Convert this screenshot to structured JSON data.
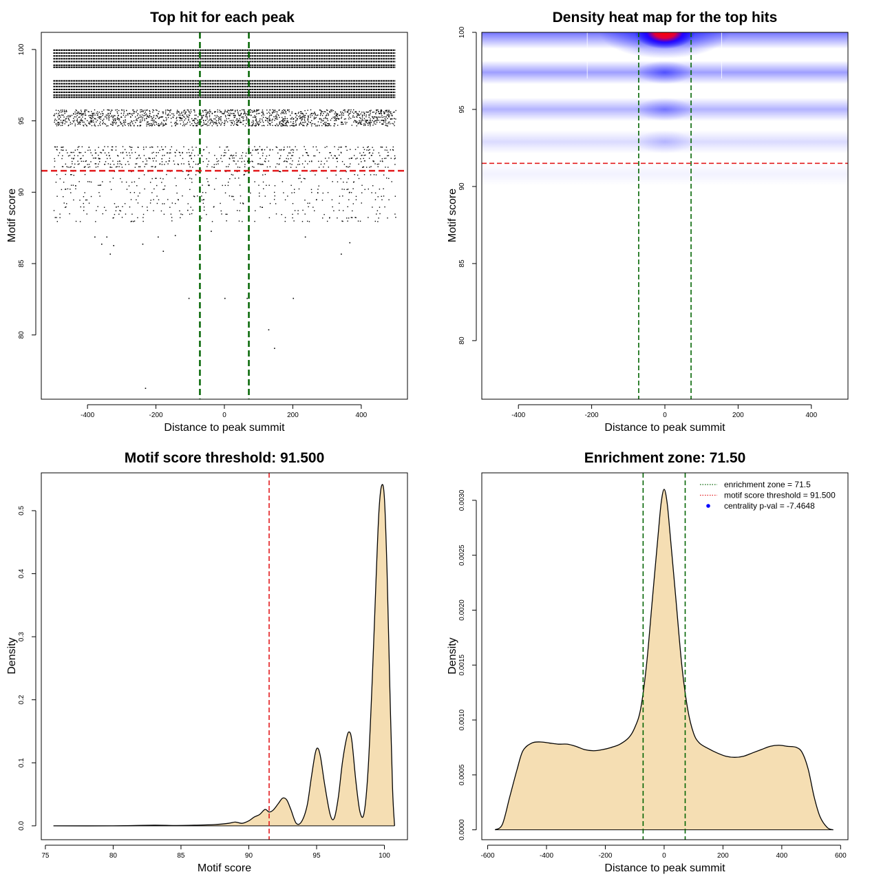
{
  "chart_data": [
    {
      "type": "scatter",
      "title": "Top hit for each peak",
      "xlabel": "Distance to peak summit",
      "ylabel": "Motif score",
      "xlim": [
        -535,
        535
      ],
      "ylim": [
        75.5,
        101.2
      ],
      "x_ticks": [
        -400,
        -200,
        0,
        200,
        400
      ],
      "y_ticks": [
        80,
        85,
        90,
        95,
        100
      ],
      "x_tick_labels": [
        "-400",
        "-200",
        "0",
        "200",
        "400"
      ],
      "y_tick_labels": [
        "80",
        "85",
        "90",
        "95",
        "100"
      ],
      "vlines": [
        -71.5,
        71.5
      ],
      "hline": 91.5,
      "line_color_v": "#006400",
      "line_color_h": "#e31a1c",
      "solid_bands": [
        99.95,
        99.75,
        99.55,
        99.35,
        99.15,
        98.9,
        98.75,
        97.8,
        97.6,
        97.4,
        97.2,
        97.0,
        96.8,
        96.65
      ],
      "dense_band_range": [
        94.7,
        95.8
      ],
      "medium_band_range": [
        91.8,
        93.4
      ],
      "sparse_band_range": [
        88.0,
        91.5
      ],
      "outliers": [
        {
          "x": -380,
          "y": 86.9
        },
        {
          "x": -360,
          "y": 86.4
        },
        {
          "x": -345,
          "y": 86.9
        },
        {
          "x": -325,
          "y": 86.3
        },
        {
          "x": -335,
          "y": 85.7
        },
        {
          "x": -240,
          "y": 86.4
        },
        {
          "x": -195,
          "y": 86.9
        },
        {
          "x": -180,
          "y": 85.9
        },
        {
          "x": -145,
          "y": 87.0
        },
        {
          "x": 235,
          "y": 86.9
        },
        {
          "x": 340,
          "y": 85.7
        },
        {
          "x": 365,
          "y": 86.5
        },
        {
          "x": -105,
          "y": 82.6
        },
        {
          "x": 0,
          "y": 82.6
        },
        {
          "x": 65,
          "y": 82.6
        },
        {
          "x": 200,
          "y": 82.6
        },
        {
          "x": 128,
          "y": 80.4
        },
        {
          "x": 145,
          "y": 79.1
        },
        {
          "x": -232,
          "y": 76.3
        },
        {
          "x": 70,
          "y": 87.5
        },
        {
          "x": -40,
          "y": 87.3
        }
      ]
    },
    {
      "type": "heatmap",
      "title": "Density heat map for the top hits",
      "xlabel": "Distance to peak summit",
      "ylabel": "Motif score",
      "xlim": [
        -500,
        500
      ],
      "ylim": [
        76.2,
        100.0
      ],
      "x_ticks": [
        -400,
        -200,
        0,
        200,
        400
      ],
      "y_ticks": [
        80,
        85,
        90,
        95,
        100
      ],
      "x_tick_labels": [
        "-400",
        "-200",
        "0",
        "200",
        "400"
      ],
      "y_tick_labels": [
        "80",
        "85",
        "90",
        "95",
        "100"
      ],
      "vlines": [
        -71.5,
        71.5
      ],
      "hline": 91.5,
      "colors": {
        "low": "#ffffff",
        "mid": "#0000ff",
        "high": "#ff0000"
      },
      "density_bands": [
        {
          "y": 99.9,
          "intensity": 0.55,
          "width": 0.9
        },
        {
          "y": 97.4,
          "intensity": 0.38,
          "width": 0.55
        },
        {
          "y": 95.0,
          "intensity": 0.3,
          "width": 0.5
        },
        {
          "y": 92.9,
          "intensity": 0.14,
          "width": 0.55
        },
        {
          "y": 90.8,
          "intensity": 0.05,
          "width": 0.7
        }
      ],
      "hotspots": [
        {
          "x": 0,
          "y": 100.0,
          "intensity": 1.0
        },
        {
          "x": 0,
          "y": 97.4,
          "intensity": 0.5
        },
        {
          "x": 0,
          "y": 95.0,
          "intensity": 0.35
        },
        {
          "x": 0,
          "y": 92.9,
          "intensity": 0.18
        }
      ]
    },
    {
      "type": "area",
      "title": "Motif score threshold: 91.500",
      "xlabel": "Motif score",
      "ylabel": "Density",
      "xlim": [
        74.7,
        101.7
      ],
      "ylim": [
        -0.022,
        0.56
      ],
      "x_ticks": [
        75,
        80,
        85,
        90,
        95,
        100
      ],
      "y_ticks": [
        0.0,
        0.1,
        0.2,
        0.3,
        0.4,
        0.5
      ],
      "x_tick_labels": [
        "75",
        "80",
        "85",
        "90",
        "95",
        "100"
      ],
      "y_tick_labels": [
        "0.0",
        "0.1",
        "0.2",
        "0.3",
        "0.4",
        "0.5"
      ],
      "vline": 91.5,
      "line_color": "#e31a1c",
      "fill_color": "#f5deb3",
      "x": [
        75.6,
        80,
        83,
        84.5,
        86,
        87.5,
        88.5,
        89,
        89.5,
        90,
        90.4,
        90.8,
        91.2,
        91.5,
        91.8,
        92.2,
        92.5,
        92.8,
        93.1,
        93.5,
        93.9,
        94.3,
        94.6,
        94.9,
        95.1,
        95.3,
        95.6,
        96,
        96.3,
        96.6,
        96.9,
        97.2,
        97.4,
        97.6,
        97.9,
        98.2,
        98.5,
        98.8,
        99.1,
        99.4,
        99.6,
        99.8,
        100,
        100.2,
        100.4,
        100.6,
        100.75
      ],
      "y": [
        0.0,
        0.0,
        0.001,
        0.0005,
        0.001,
        0.002,
        0.004,
        0.006,
        0.004,
        0.008,
        0.014,
        0.018,
        0.026,
        0.022,
        0.025,
        0.036,
        0.044,
        0.041,
        0.026,
        0.004,
        0.007,
        0.032,
        0.075,
        0.115,
        0.123,
        0.108,
        0.065,
        0.018,
        0.012,
        0.045,
        0.1,
        0.138,
        0.149,
        0.135,
        0.07,
        0.022,
        0.02,
        0.09,
        0.23,
        0.4,
        0.5,
        0.54,
        0.52,
        0.4,
        0.22,
        0.06,
        0.0
      ]
    },
    {
      "type": "area",
      "title": "Enrichment zone: 71.50",
      "xlabel": "Distance to peak summit",
      "ylabel": "Density",
      "xlim": [
        -620,
        625
      ],
      "ylim": [
        -9e-05,
        0.00325
      ],
      "x_ticks": [
        -600,
        -400,
        -200,
        0,
        200,
        400,
        600
      ],
      "y_ticks": [
        0.0,
        0.0005,
        0.001,
        0.0015,
        0.002,
        0.0025,
        0.003
      ],
      "x_tick_labels": [
        "-600",
        "-400",
        "-200",
        "0",
        "200",
        "400",
        "600"
      ],
      "y_tick_labels": [
        "0.0000",
        "0.0005",
        "0.0010",
        "0.0015",
        "0.0020",
        "0.0025",
        "0.0030"
      ],
      "vlines": [
        -71.5,
        71.5
      ],
      "line_color": "#006400",
      "fill_color": "#f5deb3",
      "x": [
        -575,
        -550,
        -525,
        -500,
        -480,
        -450,
        -420,
        -390,
        -360,
        -330,
        -300,
        -270,
        -240,
        -210,
        -180,
        -150,
        -120,
        -100,
        -80,
        -60,
        -40,
        -20,
        -10,
        0,
        10,
        20,
        40,
        60,
        80,
        100,
        120,
        150,
        180,
        210,
        240,
        270,
        300,
        330,
        360,
        390,
        420,
        450,
        470,
        490,
        510,
        530,
        555,
        575
      ],
      "y": [
        0.0,
        5e-05,
        0.0003,
        0.00055,
        0.00072,
        0.00079,
        0.0008,
        0.00079,
        0.00078,
        0.00078,
        0.00076,
        0.00073,
        0.00072,
        0.00073,
        0.00075,
        0.00078,
        0.00084,
        0.00093,
        0.0011,
        0.0015,
        0.0021,
        0.0027,
        0.00298,
        0.0031,
        0.00298,
        0.0027,
        0.0021,
        0.0015,
        0.0011,
        0.00088,
        0.00079,
        0.00074,
        0.0007,
        0.00067,
        0.00066,
        0.00067,
        0.0007,
        0.00073,
        0.00076,
        0.00077,
        0.00076,
        0.00075,
        0.0007,
        0.00055,
        0.0003,
        0.00012,
        2e-05,
        0.0
      ],
      "legend": [
        {
          "label": "enrichment zone = 71.5",
          "color": "#006400",
          "style": "dotted"
        },
        {
          "label": "motif score threshold = 91.500",
          "color": "#e31a1c",
          "style": "dotted"
        },
        {
          "label": "centrality p-val = -7.4648",
          "color": "#0000ff",
          "style": "point"
        }
      ],
      "legend_position": "top-right"
    }
  ]
}
